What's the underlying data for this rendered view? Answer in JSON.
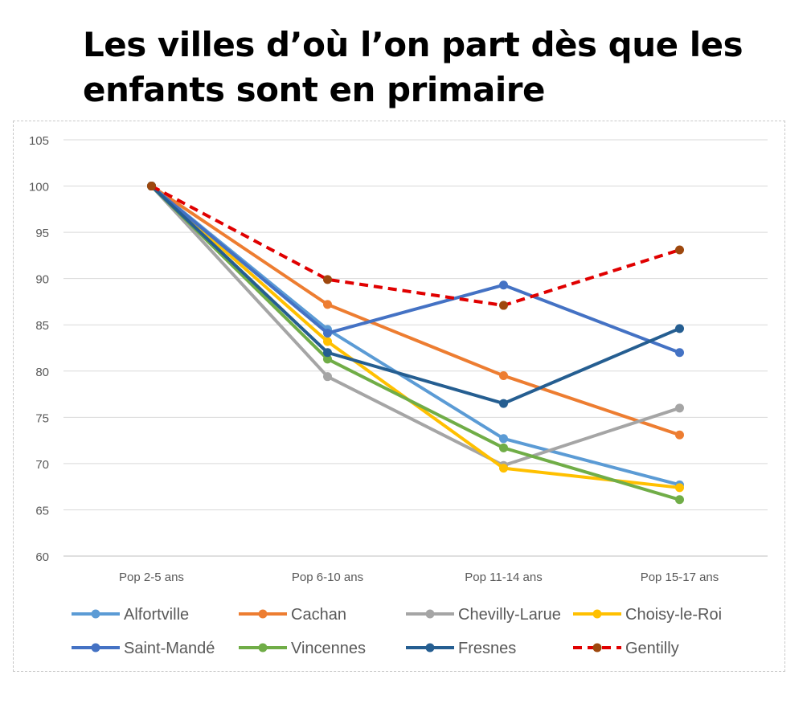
{
  "title": "Les villes d’où l’on part dès que les enfants sont en primaire",
  "chart_data": {
    "type": "line",
    "title": "Les villes d’où l’on part dès que les enfants sont en primaire",
    "xlabel": "",
    "ylabel": "",
    "categories": [
      "Pop 2-5 ans",
      "Pop 6-10 ans",
      "Pop 11-14 ans",
      "Pop 15-17 ans"
    ],
    "ylim": [
      60,
      105
    ],
    "yticks": [
      60,
      65,
      70,
      75,
      80,
      85,
      90,
      95,
      100,
      105
    ],
    "grid": true,
    "legend_position": "bottom",
    "series": [
      {
        "name": "Alfortville",
        "color": "#5B9BD5",
        "dashed": false,
        "values": [
          100,
          84.5,
          72.7,
          67.7
        ]
      },
      {
        "name": "Cachan",
        "color": "#ED7D31",
        "dashed": false,
        "values": [
          100,
          87.2,
          79.5,
          73.1
        ]
      },
      {
        "name": "Chevilly-Larue",
        "color": "#A5A5A5",
        "dashed": false,
        "values": [
          100,
          79.4,
          69.8,
          76.0
        ]
      },
      {
        "name": "Choisy-le-Roi",
        "color": "#FFC000",
        "dashed": false,
        "values": [
          100,
          83.2,
          69.5,
          67.4
        ]
      },
      {
        "name": "Saint-Mandé",
        "color": "#4472C4",
        "dashed": false,
        "values": [
          100,
          84.1,
          89.3,
          82.0
        ]
      },
      {
        "name": "Vincennes",
        "color": "#70AD47",
        "dashed": false,
        "values": [
          100,
          81.3,
          71.7,
          66.1
        ]
      },
      {
        "name": "Fresnes",
        "color": "#255E91",
        "dashed": false,
        "values": [
          100,
          82.0,
          76.5,
          84.6
        ]
      },
      {
        "name": "Gentilly",
        "color": "#E00000",
        "marker_color": "#9E480E",
        "dashed": true,
        "values": [
          100,
          89.9,
          87.1,
          93.1
        ]
      }
    ]
  }
}
